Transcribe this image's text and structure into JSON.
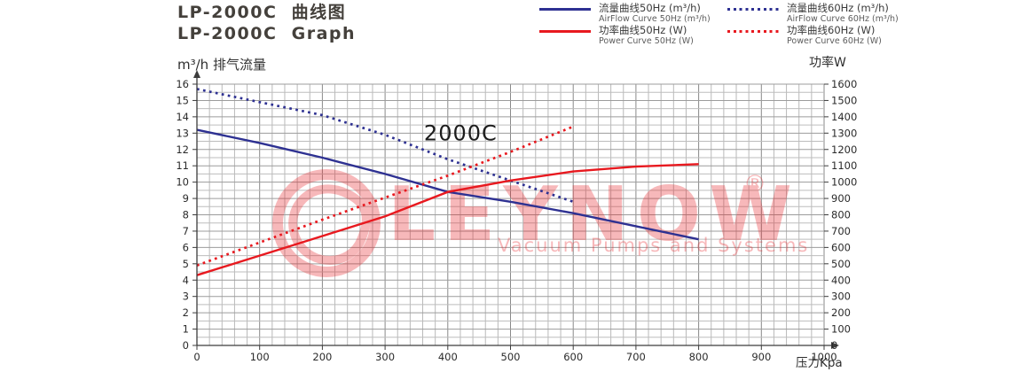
{
  "page": {
    "title_line1": "LP-2000C  曲线图",
    "title_line2": "LP-2000C  Graph"
  },
  "legend": {
    "items": [
      {
        "label_zh": "流量曲线50Hz (m³/h)",
        "label_en": "AirFlow Curve 50Hz (m³/h)",
        "color": "#2e3192",
        "style": "solid"
      },
      {
        "label_zh": "流量曲线60Hz (m³/h)",
        "label_en": "AirFlow Curve 60Hz (m³/h)",
        "color": "#2e3192",
        "style": "dotted"
      },
      {
        "label_zh": "功率曲线50Hz (W)",
        "label_en": "Power Curve 50Hz (W)",
        "color": "#e8191f",
        "style": "solid"
      },
      {
        "label_zh": "功率曲线60Hz (W)",
        "label_en": "Power Curve 60Hz (W)",
        "color": "#e8191f",
        "style": "dotted"
      }
    ]
  },
  "axes": {
    "left_title": "m³/h 排气流量",
    "right_title": "功率W",
    "x_title": "压力Kpa"
  },
  "watermark": {
    "brand": "LEYNOW",
    "registered": "®",
    "tagline": "Vacuum Pumps and Systems",
    "color": "#e8191f"
  },
  "chart_data": {
    "type": "line",
    "title": "LP-2000C 曲线图 / Graph",
    "annotation": {
      "text": "2000C",
      "x": 362,
      "y": 12.55
    },
    "x_label": "压力Kpa",
    "x_range": [
      0,
      1000
    ],
    "x_major_step": 100,
    "x_minor_step": 20,
    "y_left_label": "m³/h 排气流量",
    "y_left_range": [
      0,
      16
    ],
    "y_left_major_step": 1,
    "y_left_minor_step": 0.5,
    "y_right_label": "功率W",
    "y_right_range": [
      0,
      1600
    ],
    "y_right_major_step": 100,
    "grid": true,
    "legend_position": "top-right",
    "series": [
      {
        "name": "流量曲线50Hz (m³/h) / AirFlow Curve 50Hz",
        "axis": "left",
        "color": "#2e3192",
        "dash": "solid",
        "x": [
          0,
          100,
          200,
          300,
          400,
          500,
          600,
          700,
          800
        ],
        "y": [
          13.2,
          12.4,
          11.5,
          10.5,
          9.4,
          8.8,
          8.1,
          7.3,
          6.5
        ]
      },
      {
        "name": "流量曲线60Hz (m³/h) / AirFlow Curve 60Hz",
        "axis": "left",
        "color": "#2e3192",
        "dash": "dotted",
        "x": [
          0,
          100,
          200,
          300,
          400,
          500,
          600
        ],
        "y": [
          15.7,
          14.9,
          14.1,
          12.9,
          11.4,
          10.1,
          8.8
        ]
      },
      {
        "name": "功率曲线50Hz (W) / Power Curve 50Hz",
        "axis": "right",
        "color": "#e8191f",
        "dash": "solid",
        "x": [
          0,
          100,
          200,
          300,
          400,
          500,
          600,
          700,
          800
        ],
        "y": [
          430,
          550,
          670,
          790,
          940,
          1010,
          1065,
          1095,
          1110
        ]
      },
      {
        "name": "功率曲线60Hz (W) / Power Curve 60Hz",
        "axis": "right",
        "color": "#e8191f",
        "dash": "dotted",
        "x": [
          0,
          100,
          200,
          300,
          400,
          500,
          600
        ],
        "y": [
          490,
          630,
          770,
          905,
          1040,
          1185,
          1340
        ]
      }
    ]
  }
}
